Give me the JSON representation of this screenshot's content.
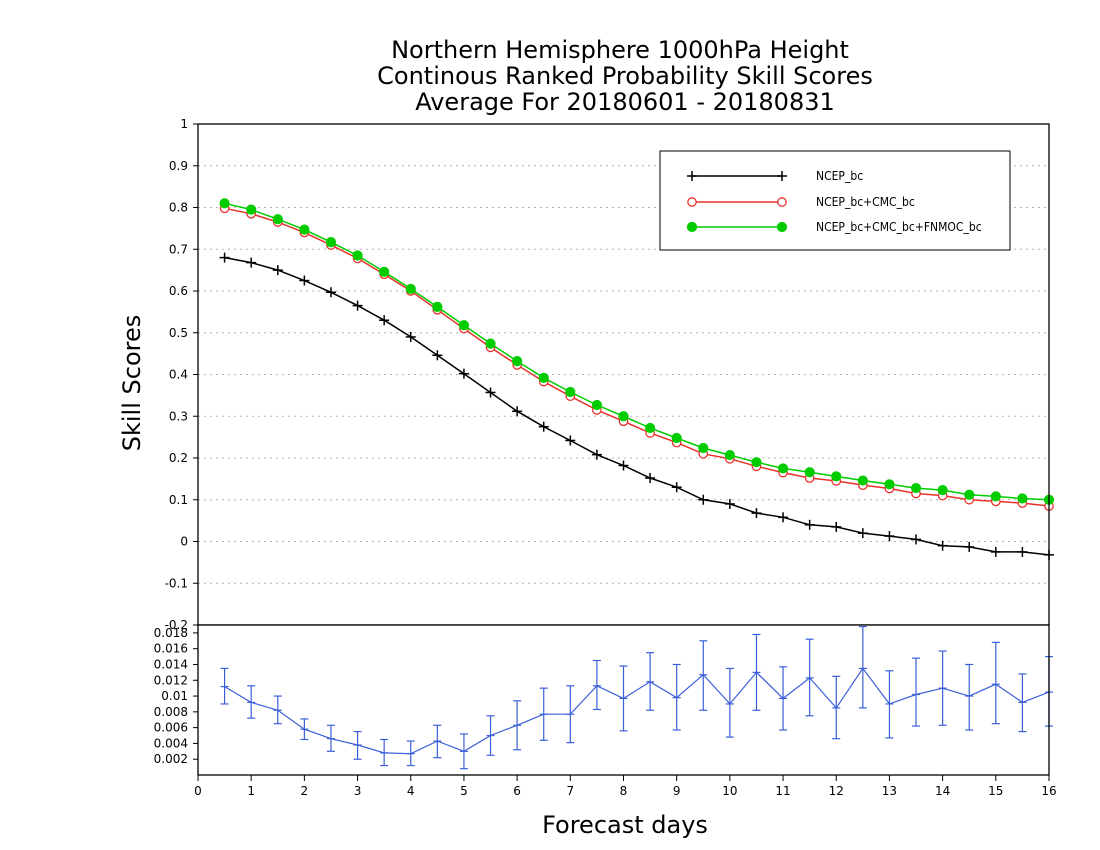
{
  "chart_data": [
    {
      "type": "line",
      "title": [
        "Northern Hemisphere 1000hPa Height",
        "Continous Ranked Probability Skill Scores",
        "Average For 20180601 - 20180831"
      ],
      "xlabel": "Forecast days",
      "ylabel": "Skill Scores",
      "xlim": [
        0,
        16
      ],
      "ylim": [
        -0.2,
        1.0
      ],
      "yticks": [
        "-0.2",
        "-0.1",
        "0",
        "0.1",
        "0.2",
        "0.3",
        "0.4",
        "0.5",
        "0.6",
        "0.7",
        "0.8",
        "0.9",
        "1"
      ],
      "grid": true,
      "legend": "top-right",
      "x": [
        0.5,
        1,
        1.5,
        2,
        2.5,
        3,
        3.5,
        4,
        4.5,
        5,
        5.5,
        6,
        6.5,
        7,
        7.5,
        8,
        8.5,
        9,
        9.5,
        10,
        10.5,
        11,
        11.5,
        12,
        12.5,
        13,
        13.5,
        14,
        14.5,
        15,
        15.5,
        16
      ],
      "series": [
        {
          "name": "NCEP_bc",
          "color": "#000000",
          "marker": "plus",
          "values": [
            0.68,
            0.668,
            0.65,
            0.625,
            0.597,
            0.565,
            0.53,
            0.49,
            0.446,
            0.402,
            0.357,
            0.312,
            0.275,
            0.242,
            0.208,
            0.182,
            0.152,
            0.13,
            0.1,
            0.09,
            0.068,
            0.058,
            0.04,
            0.035,
            0.02,
            0.013,
            0.005,
            -0.01,
            -0.013,
            -0.025,
            -0.025,
            -0.032
          ]
        },
        {
          "name": "NCEP_bc+CMC_bc",
          "color": "#e8322d",
          "marker": "open-circle",
          "values": [
            0.798,
            0.785,
            0.765,
            0.74,
            0.71,
            0.678,
            0.64,
            0.6,
            0.555,
            0.51,
            0.465,
            0.423,
            0.383,
            0.348,
            0.315,
            0.288,
            0.26,
            0.237,
            0.21,
            0.198,
            0.18,
            0.165,
            0.152,
            0.145,
            0.135,
            0.127,
            0.115,
            0.11,
            0.1,
            0.096,
            0.092,
            0.085
          ]
        },
        {
          "name": "NCEP_bc+CMC_bc+FNMOC_bc",
          "color": "#00cc00",
          "marker": "filled-circle",
          "values": [
            0.81,
            0.795,
            0.772,
            0.747,
            0.717,
            0.685,
            0.646,
            0.605,
            0.562,
            0.518,
            0.474,
            0.432,
            0.392,
            0.358,
            0.327,
            0.3,
            0.272,
            0.248,
            0.224,
            0.207,
            0.19,
            0.175,
            0.166,
            0.156,
            0.146,
            0.137,
            0.128,
            0.123,
            0.112,
            0.108,
            0.103,
            0.1
          ]
        }
      ]
    },
    {
      "type": "line",
      "xlim": [
        0,
        16
      ],
      "ylim": [
        0.0,
        0.019
      ],
      "xticks": [
        "0",
        "1",
        "2",
        "3",
        "4",
        "5",
        "6",
        "7",
        "8",
        "9",
        "10",
        "11",
        "12",
        "13",
        "14",
        "15",
        "16"
      ],
      "yticks": [
        "0.002",
        "0.004",
        "0.006",
        "0.008",
        "0.01",
        "0.012",
        "0.014",
        "0.016",
        "0.018"
      ],
      "color": "#3b5fd9",
      "x": [
        0.5,
        1,
        1.5,
        2,
        2.5,
        3,
        3.5,
        4,
        4.5,
        5,
        5.5,
        6,
        6.5,
        7,
        7.5,
        8,
        8.5,
        9,
        9.5,
        10,
        10.5,
        11,
        11.5,
        12,
        12.5,
        13,
        13.5,
        14,
        14.5,
        15,
        15.5,
        16
      ],
      "values": [
        0.0112,
        0.0092,
        0.0082,
        0.0058,
        0.0046,
        0.0038,
        0.0028,
        0.0027,
        0.0043,
        0.003,
        0.005,
        0.0063,
        0.0077,
        0.0077,
        0.0113,
        0.0097,
        0.0118,
        0.0098,
        0.0127,
        0.009,
        0.013,
        0.0097,
        0.0123,
        0.0085,
        0.0135,
        0.009,
        0.0102,
        0.011,
        0.01,
        0.0115,
        0.0092,
        0.0105
      ],
      "error_low": [
        0.009,
        0.0072,
        0.0065,
        0.0045,
        0.003,
        0.002,
        0.0012,
        0.0012,
        0.0022,
        0.0008,
        0.0025,
        0.0032,
        0.0044,
        0.0041,
        0.0083,
        0.0056,
        0.0082,
        0.0057,
        0.0082,
        0.0048,
        0.0082,
        0.0057,
        0.0075,
        0.0046,
        0.0085,
        0.0047,
        0.0062,
        0.0063,
        0.0057,
        0.0065,
        0.0055,
        0.0062
      ],
      "error_high": [
        0.0135,
        0.0113,
        0.01,
        0.0071,
        0.0063,
        0.0055,
        0.0045,
        0.0043,
        0.0063,
        0.0052,
        0.0075,
        0.0094,
        0.011,
        0.0113,
        0.0145,
        0.0138,
        0.0155,
        0.014,
        0.017,
        0.0135,
        0.0178,
        0.0137,
        0.0172,
        0.0125,
        0.0188,
        0.0132,
        0.0148,
        0.0157,
        0.014,
        0.0168,
        0.0128,
        0.015
      ]
    }
  ]
}
